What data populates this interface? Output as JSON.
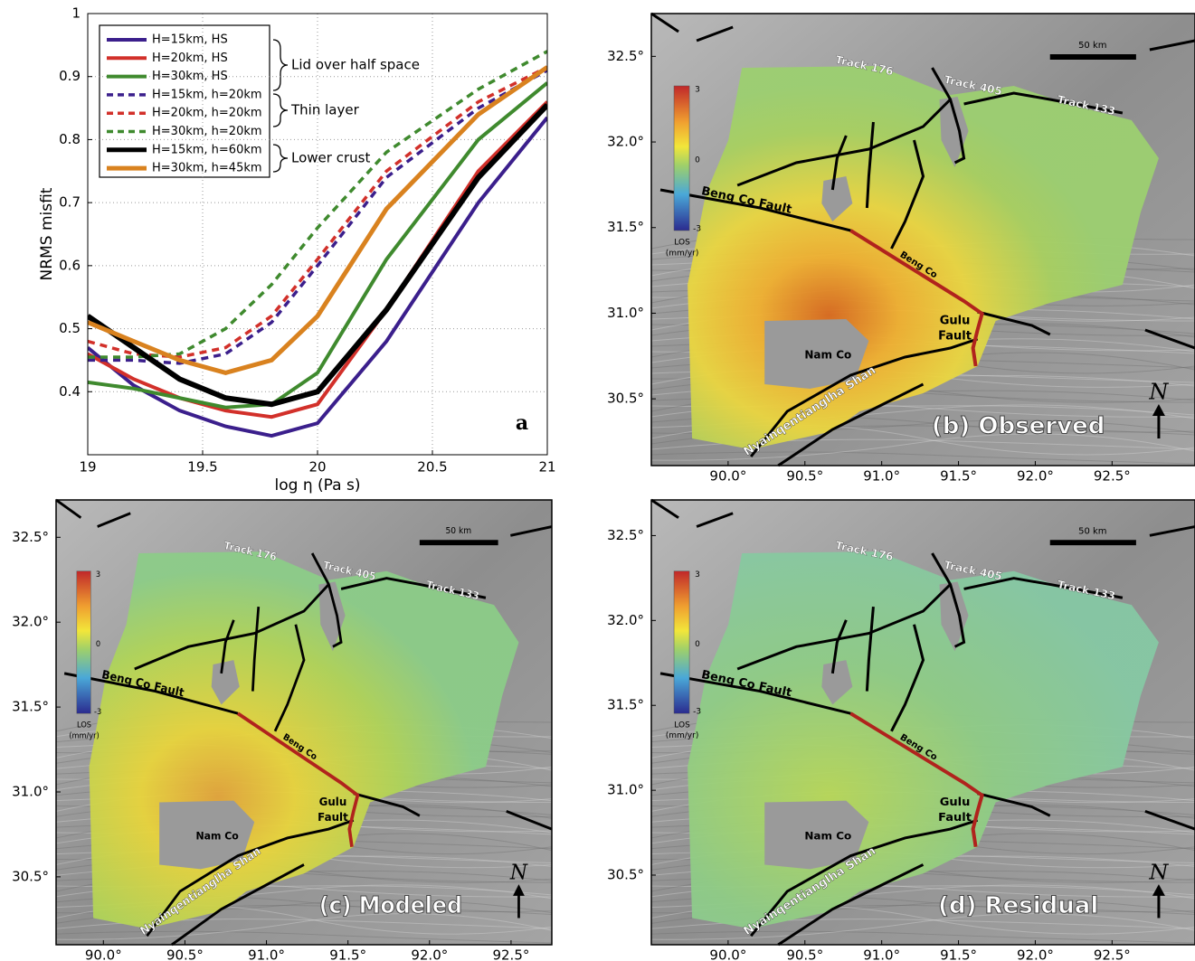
{
  "chart_data": {
    "type": "line",
    "xlabel": "log η (Pa s)",
    "ylabel": "NRMS misfit",
    "panel_label": "a",
    "x": [
      19,
      19.2,
      19.4,
      19.6,
      19.8,
      20,
      20.3,
      20.7,
      21
    ],
    "xlim": [
      19,
      21
    ],
    "xticks": [
      19,
      19.5,
      20,
      20.5,
      21
    ],
    "ylim": [
      0.3,
      1
    ],
    "yticks": [
      0.4,
      0.5,
      0.6,
      0.7,
      0.8,
      0.9,
      1
    ],
    "grid": true,
    "grid_style": "dotted",
    "legend": "upper left",
    "series": [
      {
        "name": "H=15km, HS",
        "color": "#3b1f8c",
        "style": "solid",
        "width": 4,
        "values": [
          0.47,
          0.41,
          0.37,
          0.345,
          0.33,
          0.35,
          0.48,
          0.7,
          0.835
        ]
      },
      {
        "name": "H=20km, HS",
        "color": "#d2302a",
        "style": "solid",
        "width": 4,
        "values": [
          0.46,
          0.42,
          0.39,
          0.37,
          0.36,
          0.38,
          0.53,
          0.75,
          0.86
        ]
      },
      {
        "name": "H=30km, HS",
        "color": "#3f8a2e",
        "style": "solid",
        "width": 4,
        "values": [
          0.415,
          0.405,
          0.39,
          0.375,
          0.38,
          0.43,
          0.61,
          0.8,
          0.89
        ]
      },
      {
        "name": "H=15km, h=20km",
        "color": "#3b1f8c",
        "style": "dashed",
        "width": 3.5,
        "values": [
          0.45,
          0.45,
          0.445,
          0.46,
          0.51,
          0.6,
          0.74,
          0.85,
          0.91
        ]
      },
      {
        "name": "H=20km, h=20km",
        "color": "#d2302a",
        "style": "dashed",
        "width": 3.5,
        "values": [
          0.48,
          0.46,
          0.455,
          0.47,
          0.52,
          0.61,
          0.75,
          0.86,
          0.915
        ]
      },
      {
        "name": "H=30km, h=20km",
        "color": "#3f8a2e",
        "style": "dashed",
        "width": 3.5,
        "values": [
          0.455,
          0.455,
          0.46,
          0.5,
          0.57,
          0.66,
          0.78,
          0.88,
          0.94
        ]
      },
      {
        "name": "H=15km, h=60km",
        "color": "#000000",
        "style": "solid",
        "width": 6,
        "values": [
          0.52,
          0.47,
          0.42,
          0.39,
          0.38,
          0.4,
          0.53,
          0.74,
          0.855
        ]
      },
      {
        "name": "H=30km, h=45km",
        "color": "#d9821f",
        "style": "solid",
        "width": 5,
        "values": [
          0.51,
          0.48,
          0.45,
          0.43,
          0.45,
          0.52,
          0.69,
          0.84,
          0.915
        ]
      }
    ],
    "groups": [
      "Lid over half space",
      "Thin layer",
      "Lower crust"
    ]
  },
  "maps": [
    {
      "panel_label": "(b) Observed",
      "xlim": [
        89.5,
        93.04
      ],
      "ylim": [
        30.11,
        32.75
      ],
      "lonticks": [
        {
          "value": 90.0,
          "label": "90.0°"
        },
        {
          "value": 90.5,
          "label": "90.5°"
        },
        {
          "value": 91.0,
          "label": "91.0°"
        },
        {
          "value": 91.5,
          "label": "91.5°"
        },
        {
          "value": 92.0,
          "label": "92.0°"
        },
        {
          "value": 92.5,
          "label": "92.5°"
        }
      ],
      "latticks": [
        {
          "value": 30.5,
          "label": "30.5°"
        },
        {
          "value": 31.0,
          "label": "31.0°"
        },
        {
          "value": 31.5,
          "label": "31.5°"
        },
        {
          "value": 32.0,
          "label": "32.0°"
        },
        {
          "value": 32.5,
          "label": "32.5°"
        }
      ],
      "labels": {
        "track_176": "Track 176",
        "track_405": "Track 405",
        "track_133": "Track 133",
        "scale": "50 km",
        "beng_co_fault": "Beng Co Fault",
        "beng_co": "Beng Co",
        "gulu": "Gulu",
        "fault": "Fault",
        "nam_co": "Nam Co",
        "range": "Nyainqentianglha Shan",
        "north": "N"
      },
      "colorbar": {
        "max": "3",
        "mid": "0",
        "min": "-3",
        "label": "LOS",
        "unit": "(mm/yr)"
      }
    },
    {
      "panel_label": "(c) Modeled",
      "xlim": [
        89.71,
        92.75
      ],
      "ylim": [
        30.1,
        32.72
      ],
      "lonticks": [
        {
          "value": 90.0,
          "label": "90.0°"
        },
        {
          "value": 90.5,
          "label": "90.5°"
        },
        {
          "value": 91.0,
          "label": "91.0°"
        },
        {
          "value": 91.5,
          "label": "91.5°"
        },
        {
          "value": 92.0,
          "label": "92.0°"
        },
        {
          "value": 92.5,
          "label": "92.5°"
        }
      ],
      "latticks": [
        {
          "value": 30.5,
          "label": "30.5°"
        },
        {
          "value": 31.0,
          "label": "31.0°"
        },
        {
          "value": 31.5,
          "label": "31.5°"
        },
        {
          "value": 32.0,
          "label": "32.0°"
        },
        {
          "value": 32.5,
          "label": "32.5°"
        }
      ],
      "labels": {
        "track_176": "Track 176",
        "track_405": "Track 405",
        "track_133": "Track 133",
        "scale": "50 km",
        "beng_co_fault": "Beng Co Fault",
        "beng_co": "Beng Co",
        "gulu": "Gulu",
        "fault": "Fault",
        "nam_co": "Nam Co",
        "range": "Nyainqentianglha Shan",
        "north": "N"
      },
      "colorbar": {
        "max": "3",
        "mid": "0",
        "min": "-3",
        "label": "LOS",
        "unit": "(mm/yr)"
      }
    },
    {
      "panel_label": "(d) Residual",
      "xlim": [
        89.5,
        93.04
      ],
      "ylim": [
        30.09,
        32.71
      ],
      "lonticks": [
        {
          "value": 90.0,
          "label": "90.0°"
        },
        {
          "value": 90.5,
          "label": "90.5°"
        },
        {
          "value": 91.0,
          "label": "91.0°"
        },
        {
          "value": 91.5,
          "label": "91.5°"
        },
        {
          "value": 92.0,
          "label": "92.0°"
        },
        {
          "value": 92.5,
          "label": "92.5°"
        }
      ],
      "latticks": [
        {
          "value": 30.5,
          "label": "30.5°"
        },
        {
          "value": 31.0,
          "label": "31.0°"
        },
        {
          "value": 31.5,
          "label": "31.5°"
        },
        {
          "value": 32.0,
          "label": "32.0°"
        },
        {
          "value": 32.5,
          "label": "32.5°"
        }
      ],
      "labels": {
        "track_176": "Track 176",
        "track_405": "Track 405",
        "track_133": "Track 133",
        "scale": "50 km",
        "beng_co_fault": "Beng Co Fault",
        "beng_co": "Beng Co",
        "gulu": "Gulu",
        "fault": "Fault",
        "nam_co": "Nam Co",
        "range": "Nyainqentianglha Shan",
        "north": "N"
      },
      "colorbar": {
        "max": "3",
        "mid": "0",
        "min": "-3",
        "label": "LOS",
        "unit": "(mm/yr)"
      }
    }
  ]
}
